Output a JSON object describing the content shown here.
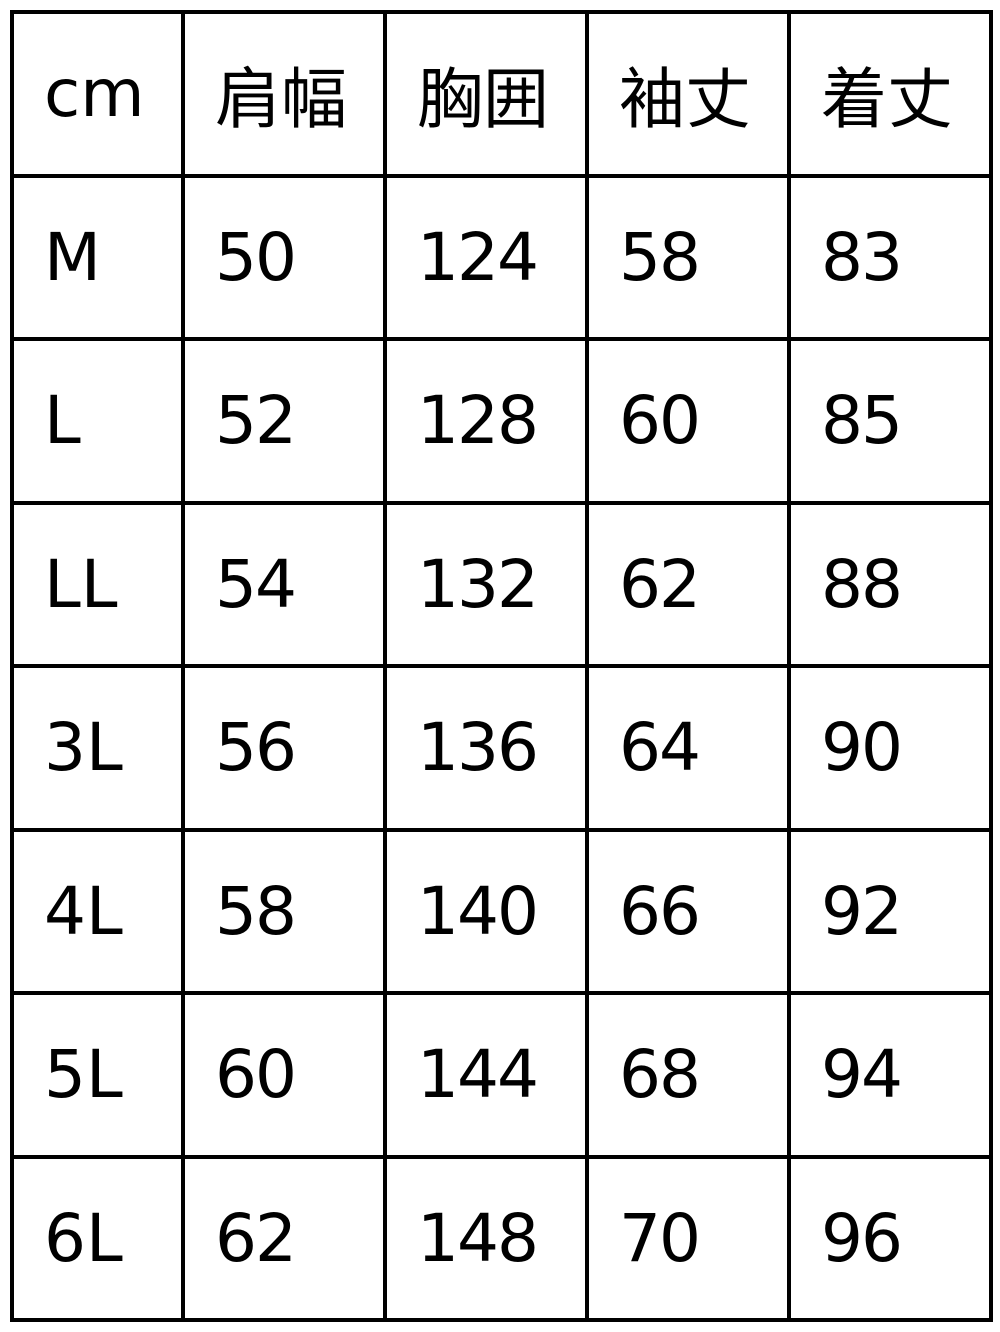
{
  "table": {
    "headers": [
      "cm",
      "肩幅",
      "胸囲",
      "袖丈",
      "着丈"
    ],
    "rows": [
      [
        "M",
        "50",
        "124",
        "58",
        "83"
      ],
      [
        "L",
        "52",
        "128",
        "60",
        "85"
      ],
      [
        "LL",
        "54",
        "132",
        "62",
        "88"
      ],
      [
        "3L",
        "56",
        "136",
        "64",
        "90"
      ],
      [
        "4L",
        "58",
        "140",
        "66",
        "92"
      ],
      [
        "5L",
        "60",
        "144",
        "68",
        "94"
      ],
      [
        "6L",
        "62",
        "148",
        "70",
        "96"
      ]
    ]
  }
}
